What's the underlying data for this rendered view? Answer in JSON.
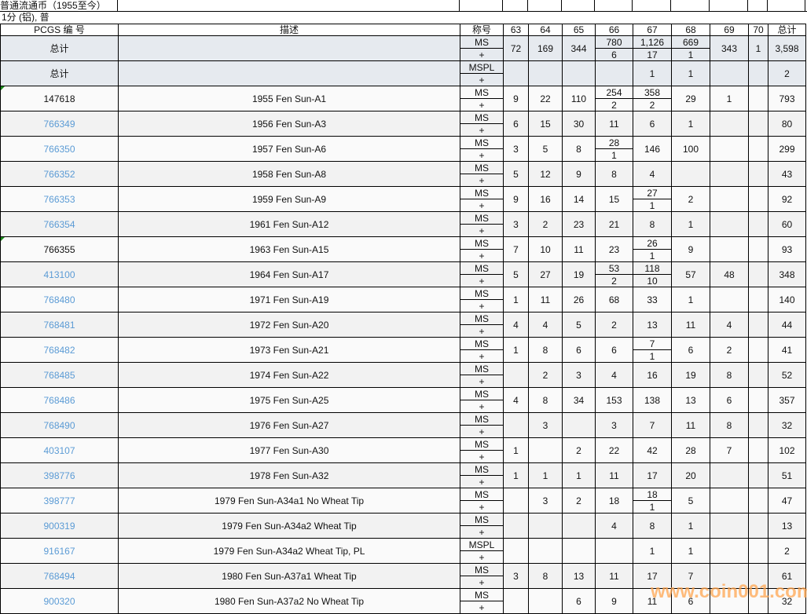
{
  "header": {
    "category": "普通流通币（1955至今）",
    "subtitle": "1分 (铝), 普"
  },
  "columns": {
    "pcgs": "PCGS 编 号",
    "desc": "描述",
    "designation": "称号",
    "grades": [
      "63",
      "64",
      "65",
      "66",
      "67",
      "68",
      "69",
      "70"
    ],
    "total": "总计"
  },
  "totals": [
    {
      "label": "总计",
      "des": "MS",
      "plus": "+",
      "cells": [
        "72",
        "169",
        "344",
        [
          "780",
          "6"
        ],
        [
          "1,126",
          "17"
        ],
        [
          "669",
          "1"
        ],
        "343",
        "1"
      ],
      "total": "3,598"
    },
    {
      "label": "总计",
      "des": "MSPL",
      "plus": "+",
      "cells": [
        "",
        "",
        "",
        "",
        "1",
        "1",
        "",
        ""
      ],
      "total": "2"
    }
  ],
  "rows": [
    {
      "id": "147618",
      "link": false,
      "desc": "1955 Fen Sun-A1",
      "des": "MS",
      "cells": [
        "9",
        "22",
        "110",
        [
          "254",
          "2"
        ],
        [
          "358",
          "2"
        ],
        "29",
        "1",
        ""
      ],
      "total": "793"
    },
    {
      "id": "766349",
      "link": true,
      "desc": "1956 Fen Sun-A3",
      "des": "MS",
      "cells": [
        "6",
        "15",
        "30",
        "11",
        "6",
        "1",
        "",
        ""
      ],
      "total": "80"
    },
    {
      "id": "766350",
      "link": true,
      "desc": "1957 Fen Sun-A6",
      "des": "MS",
      "cells": [
        "3",
        "5",
        "8",
        [
          "28",
          "1"
        ],
        "146",
        "100",
        "",
        ""
      ],
      "total": "299"
    },
    {
      "id": "766352",
      "link": true,
      "desc": "1958 Fen Sun-A8",
      "des": "MS",
      "cells": [
        "5",
        "12",
        "9",
        "8",
        "4",
        "",
        "",
        ""
      ],
      "total": "43"
    },
    {
      "id": "766353",
      "link": true,
      "desc": "1959 Fen Sun-A9",
      "des": "MS",
      "cells": [
        "9",
        "16",
        "14",
        "15",
        [
          "27",
          "1"
        ],
        "2",
        "",
        ""
      ],
      "total": "92"
    },
    {
      "id": "766354",
      "link": true,
      "desc": "1961 Fen Sun-A12",
      "des": "MS",
      "cells": [
        "3",
        "2",
        "23",
        "21",
        "8",
        "1",
        "",
        ""
      ],
      "total": "60"
    },
    {
      "id": "766355",
      "link": false,
      "desc": "1963 Fen Sun-A15",
      "des": "MS",
      "cells": [
        "7",
        "10",
        "11",
        "23",
        [
          "26",
          "1"
        ],
        "9",
        "",
        ""
      ],
      "total": "93"
    },
    {
      "id": "413100",
      "link": true,
      "desc": "1964 Fen Sun-A17",
      "des": "MS",
      "cells": [
        "5",
        "27",
        "19",
        [
          "53",
          "2"
        ],
        [
          "118",
          "10"
        ],
        "57",
        "48",
        ""
      ],
      "total": "348"
    },
    {
      "id": "768480",
      "link": true,
      "desc": "1971 Fen Sun-A19",
      "des": "MS",
      "cells": [
        "1",
        "11",
        "26",
        "68",
        "33",
        "1",
        "",
        ""
      ],
      "total": "140"
    },
    {
      "id": "768481",
      "link": true,
      "desc": "1972 Fen Sun-A20",
      "des": "MS",
      "cells": [
        "4",
        "4",
        "5",
        "2",
        "13",
        "11",
        "4",
        ""
      ],
      "total": "44"
    },
    {
      "id": "768482",
      "link": true,
      "desc": "1973 Fen Sun-A21",
      "des": "MS",
      "cells": [
        "1",
        "8",
        "6",
        "6",
        [
          "7",
          "1"
        ],
        "6",
        "2",
        ""
      ],
      "total": "41"
    },
    {
      "id": "768485",
      "link": true,
      "desc": "1974 Fen Sun-A22",
      "des": "MS",
      "cells": [
        "",
        "2",
        "3",
        "4",
        "16",
        "19",
        "8",
        ""
      ],
      "total": "52"
    },
    {
      "id": "768486",
      "link": true,
      "desc": "1975 Fen Sun-A25",
      "des": "MS",
      "cells": [
        "4",
        "8",
        "34",
        "153",
        "138",
        "13",
        "6",
        ""
      ],
      "total": "357"
    },
    {
      "id": "768490",
      "link": true,
      "desc": "1976 Fen Sun-A27",
      "des": "MS",
      "cells": [
        "",
        "3",
        "",
        "3",
        "7",
        "11",
        "8",
        ""
      ],
      "total": "32"
    },
    {
      "id": "403107",
      "link": true,
      "desc": "1977 Fen Sun-A30",
      "des": "MS",
      "cells": [
        "1",
        "",
        "2",
        "22",
        "42",
        "28",
        "7",
        ""
      ],
      "total": "102"
    },
    {
      "id": "398776",
      "link": true,
      "desc": "1978 Fen Sun-A32",
      "des": "MS",
      "cells": [
        "1",
        "1",
        "1",
        "11",
        "17",
        "20",
        "",
        ""
      ],
      "total": "51"
    },
    {
      "id": "398777",
      "link": true,
      "desc": "1979 Fen Sun-A34a1 No Wheat Tip",
      "des": "MS",
      "cells": [
        "",
        "3",
        "2",
        "18",
        [
          "18",
          "1"
        ],
        "5",
        "",
        ""
      ],
      "total": "47"
    },
    {
      "id": "900319",
      "link": true,
      "desc": "1979 Fen Sun-A34a2 Wheat Tip",
      "des": "MS",
      "cells": [
        "",
        "",
        "",
        "4",
        "8",
        "1",
        "",
        ""
      ],
      "total": "13"
    },
    {
      "id": "916167",
      "link": true,
      "desc": "1979 Fen Sun-A34a2 Wheat Tip, PL",
      "des": "MSPL",
      "cells": [
        "",
        "",
        "",
        "",
        "1",
        "1",
        "",
        ""
      ],
      "total": "2"
    },
    {
      "id": "768494",
      "link": true,
      "desc": "1980 Fen Sun-A37a1 Wheat Tip",
      "des": "MS",
      "cells": [
        "3",
        "8",
        "13",
        "11",
        "17",
        "7",
        "",
        ""
      ],
      "total": "61"
    },
    {
      "id": "900320",
      "link": true,
      "desc": "1980 Fen Sun-A37a2 No Wheat Tip",
      "des": "MS",
      "cells": [
        "",
        "",
        "6",
        "9",
        "11",
        "6",
        "",
        ""
      ],
      "total": "32"
    }
  ],
  "plus": "+",
  "watermark": "www.coin001.com",
  "colors": {
    "link": "#5b9bd5",
    "total_bg": "#e6eaef",
    "row_odd": "#fafafa",
    "row_even": "#f2f2f2"
  }
}
